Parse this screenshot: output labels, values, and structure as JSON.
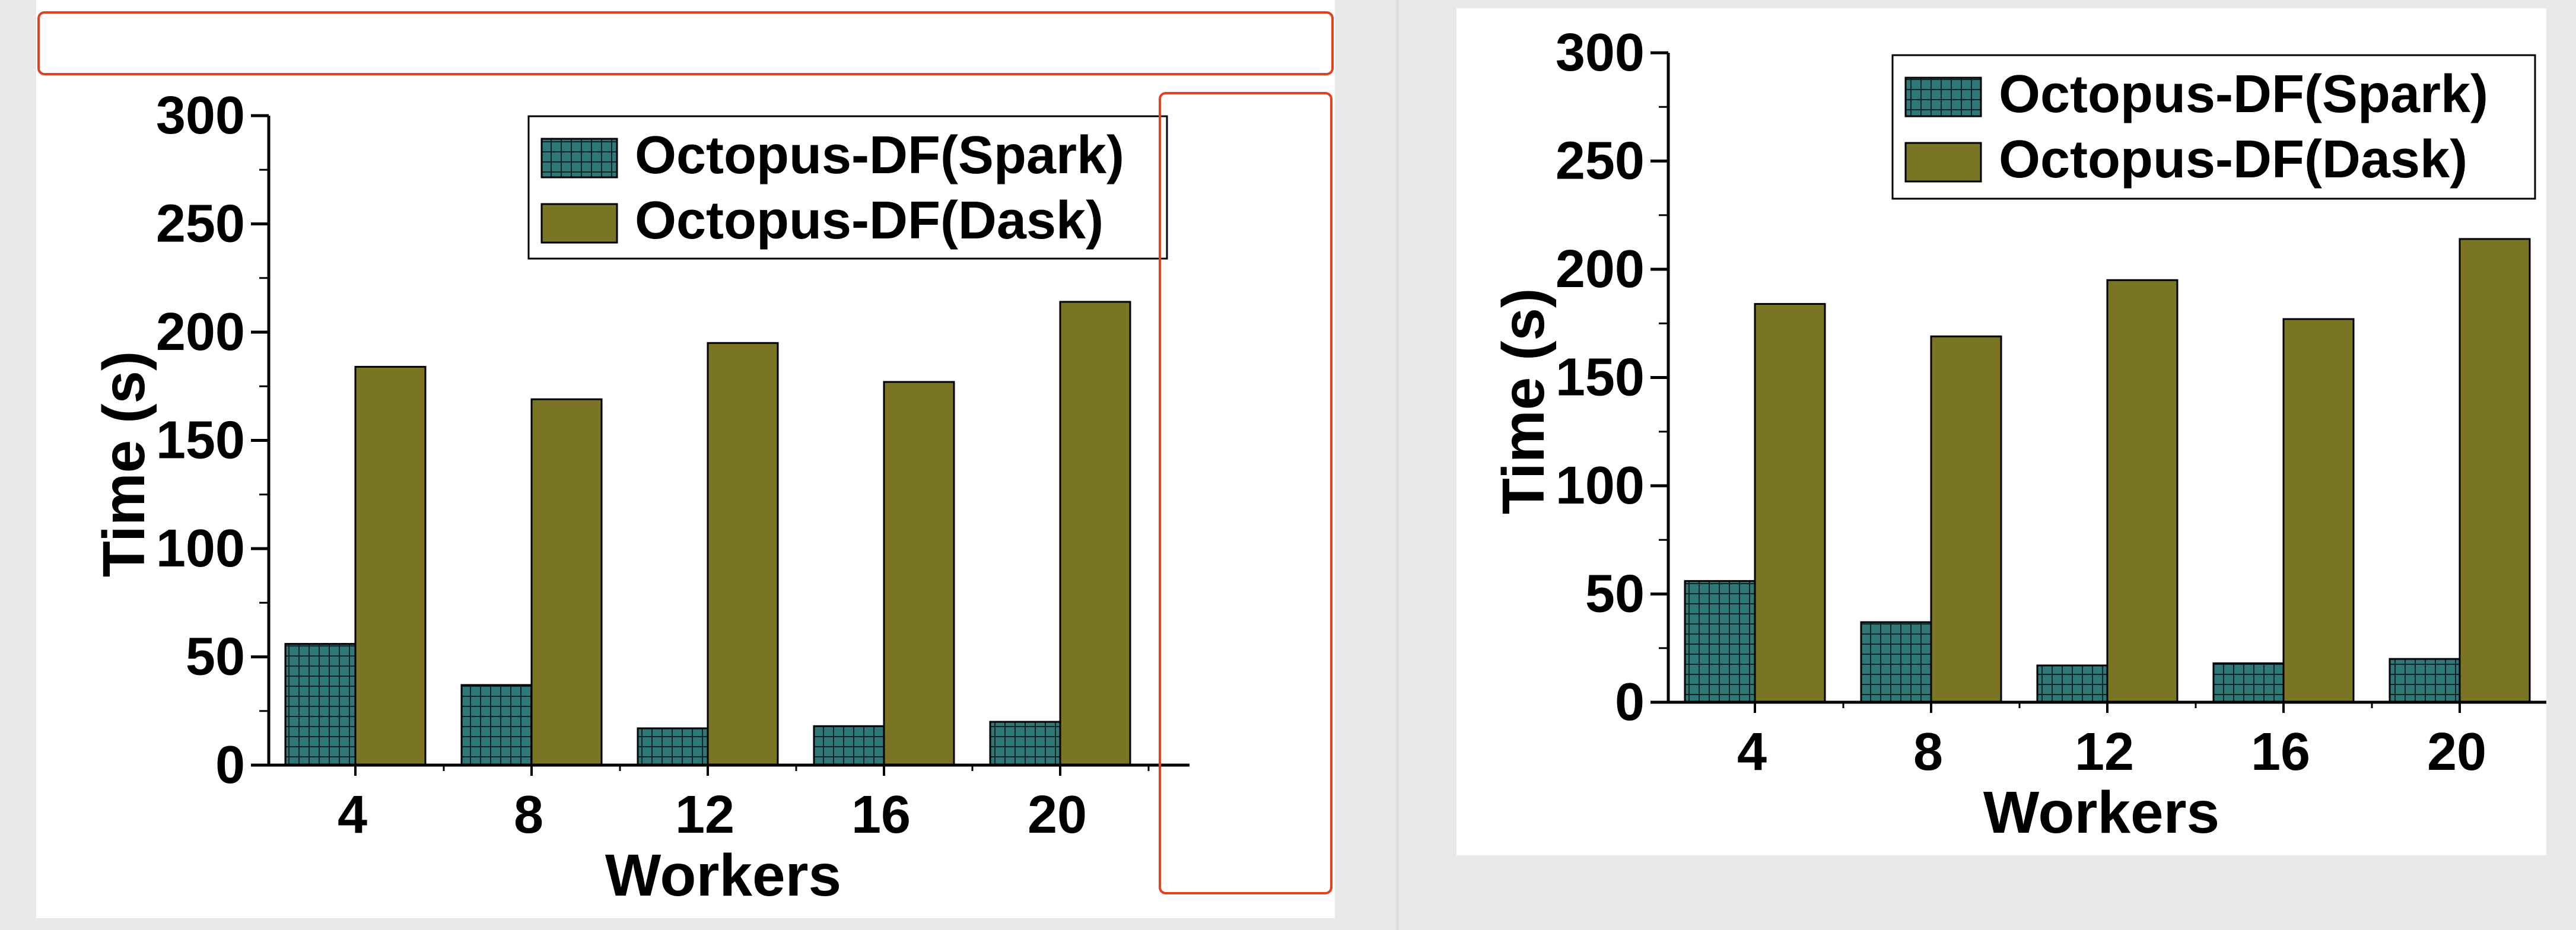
{
  "colors": {
    "spark": "#2f7878",
    "spark_grid": "#0c2424",
    "dask": "#7a7524",
    "selection": "#e0411f",
    "axis": "#000000"
  },
  "chart_data": [
    {
      "type": "bar",
      "panel": "left",
      "categories": [
        "4",
        "8",
        "12",
        "16",
        "20"
      ],
      "series": [
        {
          "name": "Octopus-DF(Spark)",
          "values": [
            56,
            37,
            17,
            18,
            20
          ],
          "pattern": "grid"
        },
        {
          "name": "Octopus-DF(Dask)",
          "values": [
            184,
            169,
            195,
            177,
            214
          ],
          "pattern": "solid"
        }
      ],
      "xlabel": "Workers",
      "ylabel": "Time (s)",
      "ylim": [
        0,
        300
      ],
      "yticks": [
        "0",
        "50",
        "100",
        "150",
        "200",
        "250",
        "300"
      ],
      "grid": false,
      "legend": "top-right"
    },
    {
      "type": "bar",
      "panel": "right",
      "categories": [
        "4",
        "8",
        "12",
        "16",
        "20"
      ],
      "series": [
        {
          "name": "Octopus-DF(Spark)",
          "values": [
            56,
            37,
            17,
            18,
            20
          ],
          "pattern": "grid"
        },
        {
          "name": "Octopus-DF(Dask)",
          "values": [
            184,
            169,
            195,
            177,
            214
          ],
          "pattern": "solid"
        }
      ],
      "xlabel": "Workers",
      "ylabel": "Time (s)",
      "ylim": [
        0,
        300
      ],
      "yticks": [
        "0",
        "50",
        "100",
        "150",
        "200",
        "250",
        "300"
      ],
      "grid": false,
      "legend": "top-right"
    }
  ]
}
